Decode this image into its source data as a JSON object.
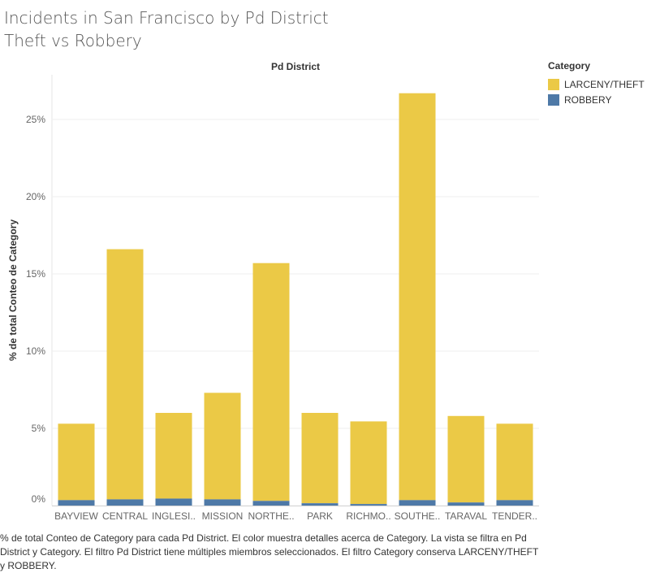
{
  "title": {
    "line1": "Incidents in San Francisco by Pd District",
    "line2": "Theft vs Robbery"
  },
  "caption": "% de total Conteo de Category para cada Pd District.  El color muestra detalles acerca de Category. La vista se filtra en Pd District y Category. El filtro Pd District tiene múltiples miembros seleccionados. El filtro Category conserva LARCENY/THEFT y ROBBERY.",
  "legend": {
    "title": "Category",
    "items": [
      {
        "label": "LARCENY/THEFT",
        "color": "#EBC946"
      },
      {
        "label": "ROBBERY",
        "color": "#4E79A7"
      }
    ]
  },
  "chart_data": {
    "type": "bar",
    "stacked": true,
    "xlabel": "Pd District",
    "ylabel": "% de total Conteo de Category",
    "ylim": [
      0,
      0.28
    ],
    "yticks": [
      0,
      0.05,
      0.1,
      0.15,
      0.2,
      0.25
    ],
    "ytick_labels": [
      "0%",
      "5%",
      "10%",
      "15%",
      "20%",
      "25%"
    ],
    "grid": true,
    "legend_position": "top-right",
    "categories": [
      "BAYVIEW",
      "CENTRAL",
      "INGLESI..",
      "MISSION",
      "NORTHE..",
      "PARK",
      "RICHMO..",
      "SOUTHE..",
      "TARAVAL",
      "TENDER.."
    ],
    "series": [
      {
        "name": "ROBBERY",
        "color": "#4E79A7",
        "values": [
          0.0035,
          0.004,
          0.0045,
          0.004,
          0.003,
          0.0015,
          0.001,
          0.0035,
          0.002,
          0.0035
        ]
      },
      {
        "name": "LARCENY/THEFT",
        "color": "#EBC946",
        "values": [
          0.0495,
          0.162,
          0.0555,
          0.069,
          0.154,
          0.0585,
          0.0535,
          0.2635,
          0.056,
          0.0495
        ]
      }
    ]
  }
}
